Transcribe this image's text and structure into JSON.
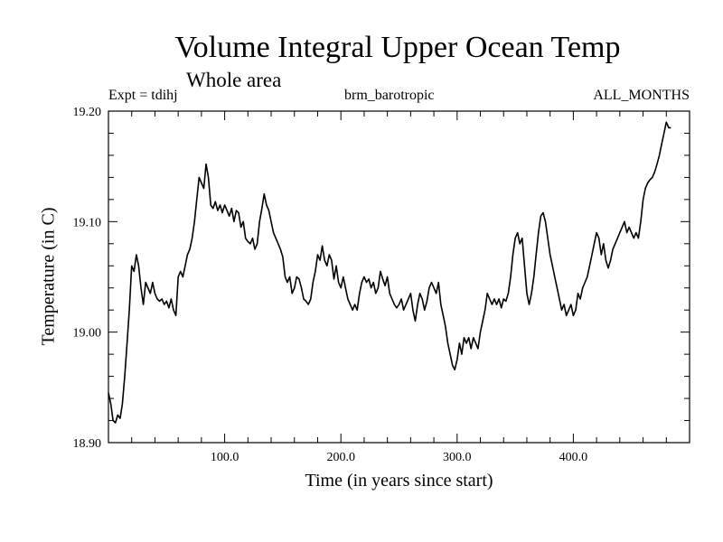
{
  "chart_data": {
    "type": "line",
    "title": "Volume Integral Upper Ocean Temp",
    "subtitle": "Whole area",
    "expt_label": "Expt = tdihj",
    "center_label": "brm_barotropic",
    "right_label": "ALL_MONTHS",
    "xlabel": "Time (in years since start)",
    "ylabel": "Temperature (in C)",
    "xlim": [
      0,
      500
    ],
    "ylim": [
      18.9,
      19.2
    ],
    "x_ticks": [
      {
        "value": 100,
        "label": "100.0"
      },
      {
        "value": 200,
        "label": "200.0"
      },
      {
        "value": 300,
        "label": "300.0"
      },
      {
        "value": 400,
        "label": "400.0"
      }
    ],
    "y_ticks": [
      {
        "value": 18.9,
        "label": "18.90"
      },
      {
        "value": 19.0,
        "label": "19.00"
      },
      {
        "value": 19.1,
        "label": "19.10"
      },
      {
        "value": 19.2,
        "label": "19.20"
      }
    ],
    "series": [
      {
        "name": "Temperature",
        "color": "#000000",
        "points": [
          [
            0,
            18.945
          ],
          [
            2,
            18.935
          ],
          [
            4,
            18.92
          ],
          [
            6,
            18.918
          ],
          [
            8,
            18.925
          ],
          [
            10,
            18.922
          ],
          [
            12,
            18.935
          ],
          [
            14,
            18.96
          ],
          [
            16,
            18.99
          ],
          [
            18,
            19.02
          ],
          [
            20,
            19.06
          ],
          [
            22,
            19.055
          ],
          [
            24,
            19.07
          ],
          [
            26,
            19.06
          ],
          [
            28,
            19.04
          ],
          [
            30,
            19.025
          ],
          [
            32,
            19.045
          ],
          [
            34,
            19.04
          ],
          [
            36,
            19.035
          ],
          [
            38,
            19.045
          ],
          [
            40,
            19.035
          ],
          [
            42,
            19.03
          ],
          [
            44,
            19.028
          ],
          [
            46,
            19.03
          ],
          [
            48,
            19.025
          ],
          [
            50,
            19.028
          ],
          [
            52,
            19.022
          ],
          [
            54,
            19.03
          ],
          [
            56,
            19.02
          ],
          [
            58,
            19.015
          ],
          [
            60,
            19.05
          ],
          [
            62,
            19.055
          ],
          [
            64,
            19.05
          ],
          [
            66,
            19.06
          ],
          [
            68,
            19.07
          ],
          [
            70,
            19.075
          ],
          [
            72,
            19.085
          ],
          [
            74,
            19.1
          ],
          [
            76,
            19.12
          ],
          [
            78,
            19.14
          ],
          [
            80,
            19.135
          ],
          [
            82,
            19.13
          ],
          [
            84,
            19.152
          ],
          [
            86,
            19.14
          ],
          [
            88,
            19.115
          ],
          [
            90,
            19.112
          ],
          [
            92,
            19.118
          ],
          [
            94,
            19.11
          ],
          [
            96,
            19.115
          ],
          [
            98,
            19.108
          ],
          [
            100,
            19.115
          ],
          [
            102,
            19.11
          ],
          [
            104,
            19.105
          ],
          [
            106,
            19.112
          ],
          [
            108,
            19.1
          ],
          [
            110,
            19.11
          ],
          [
            112,
            19.108
          ],
          [
            114,
            19.095
          ],
          [
            116,
            19.1
          ],
          [
            118,
            19.085
          ],
          [
            120,
            19.082
          ],
          [
            122,
            19.08
          ],
          [
            124,
            19.085
          ],
          [
            126,
            19.075
          ],
          [
            128,
            19.08
          ],
          [
            130,
            19.1
          ],
          [
            132,
            19.112
          ],
          [
            134,
            19.125
          ],
          [
            136,
            19.115
          ],
          [
            138,
            19.11
          ],
          [
            140,
            19.1
          ],
          [
            142,
            19.09
          ],
          [
            144,
            19.085
          ],
          [
            146,
            19.08
          ],
          [
            148,
            19.075
          ],
          [
            150,
            19.068
          ],
          [
            152,
            19.05
          ],
          [
            154,
            19.045
          ],
          [
            156,
            19.05
          ],
          [
            158,
            19.035
          ],
          [
            160,
            19.04
          ],
          [
            162,
            19.05
          ],
          [
            164,
            19.048
          ],
          [
            166,
            19.04
          ],
          [
            168,
            19.03
          ],
          [
            170,
            19.028
          ],
          [
            172,
            19.025
          ],
          [
            174,
            19.03
          ],
          [
            176,
            19.045
          ],
          [
            178,
            19.055
          ],
          [
            180,
            19.07
          ],
          [
            182,
            19.065
          ],
          [
            184,
            19.078
          ],
          [
            186,
            19.065
          ],
          [
            188,
            19.06
          ],
          [
            190,
            19.07
          ],
          [
            192,
            19.065
          ],
          [
            194,
            19.048
          ],
          [
            196,
            19.06
          ],
          [
            198,
            19.045
          ],
          [
            200,
            19.04
          ],
          [
            202,
            19.05
          ],
          [
            204,
            19.04
          ],
          [
            206,
            19.03
          ],
          [
            208,
            19.025
          ],
          [
            210,
            19.02
          ],
          [
            212,
            19.025
          ],
          [
            214,
            19.02
          ],
          [
            216,
            19.035
          ],
          [
            218,
            19.045
          ],
          [
            220,
            19.05
          ],
          [
            222,
            19.045
          ],
          [
            224,
            19.048
          ],
          [
            226,
            19.04
          ],
          [
            228,
            19.045
          ],
          [
            230,
            19.035
          ],
          [
            232,
            19.04
          ],
          [
            234,
            19.055
          ],
          [
            236,
            19.048
          ],
          [
            238,
            19.042
          ],
          [
            240,
            19.05
          ],
          [
            242,
            19.035
          ],
          [
            244,
            19.03
          ],
          [
            246,
            19.025
          ],
          [
            248,
            19.022
          ],
          [
            250,
            19.025
          ],
          [
            252,
            19.03
          ],
          [
            254,
            19.02
          ],
          [
            256,
            19.025
          ],
          [
            258,
            19.03
          ],
          [
            260,
            19.035
          ],
          [
            262,
            19.02
          ],
          [
            264,
            19.01
          ],
          [
            266,
            19.025
          ],
          [
            268,
            19.035
          ],
          [
            270,
            19.03
          ],
          [
            272,
            19.02
          ],
          [
            274,
            19.028
          ],
          [
            276,
            19.04
          ],
          [
            278,
            19.045
          ],
          [
            280,
            19.04
          ],
          [
            282,
            19.035
          ],
          [
            284,
            19.045
          ],
          [
            286,
            19.025
          ],
          [
            288,
            19.015
          ],
          [
            290,
            19.005
          ],
          [
            292,
            18.99
          ],
          [
            294,
            18.98
          ],
          [
            296,
            18.97
          ],
          [
            298,
            18.966
          ],
          [
            300,
            18.975
          ],
          [
            302,
            18.99
          ],
          [
            304,
            18.98
          ],
          [
            306,
            18.995
          ],
          [
            308,
            18.99
          ],
          [
            310,
            18.995
          ],
          [
            312,
            18.985
          ],
          [
            314,
            18.995
          ],
          [
            316,
            18.99
          ],
          [
            318,
            18.985
          ],
          [
            320,
            19.0
          ],
          [
            322,
            19.01
          ],
          [
            324,
            19.02
          ],
          [
            326,
            19.035
          ],
          [
            328,
            19.03
          ],
          [
            330,
            19.025
          ],
          [
            332,
            19.03
          ],
          [
            334,
            19.025
          ],
          [
            336,
            19.03
          ],
          [
            338,
            19.022
          ],
          [
            340,
            19.03
          ],
          [
            342,
            19.028
          ],
          [
            344,
            19.035
          ],
          [
            346,
            19.05
          ],
          [
            348,
            19.07
          ],
          [
            350,
            19.085
          ],
          [
            352,
            19.09
          ],
          [
            354,
            19.08
          ],
          [
            356,
            19.085
          ],
          [
            358,
            19.06
          ],
          [
            360,
            19.035
          ],
          [
            362,
            19.025
          ],
          [
            364,
            19.035
          ],
          [
            366,
            19.05
          ],
          [
            368,
            19.07
          ],
          [
            370,
            19.09
          ],
          [
            372,
            19.105
          ],
          [
            374,
            19.108
          ],
          [
            376,
            19.1
          ],
          [
            378,
            19.085
          ],
          [
            380,
            19.07
          ],
          [
            382,
            19.06
          ],
          [
            384,
            19.05
          ],
          [
            386,
            19.04
          ],
          [
            388,
            19.03
          ],
          [
            390,
            19.02
          ],
          [
            392,
            19.025
          ],
          [
            394,
            19.015
          ],
          [
            396,
            19.02
          ],
          [
            398,
            19.025
          ],
          [
            400,
            19.015
          ],
          [
            402,
            19.02
          ],
          [
            404,
            19.035
          ],
          [
            406,
            19.03
          ],
          [
            408,
            19.04
          ],
          [
            410,
            19.045
          ],
          [
            412,
            19.05
          ],
          [
            414,
            19.06
          ],
          [
            416,
            19.07
          ],
          [
            418,
            19.08
          ],
          [
            420,
            19.09
          ],
          [
            422,
            19.085
          ],
          [
            424,
            19.07
          ],
          [
            426,
            19.08
          ],
          [
            428,
            19.065
          ],
          [
            430,
            19.058
          ],
          [
            432,
            19.065
          ],
          [
            434,
            19.075
          ],
          [
            436,
            19.08
          ],
          [
            438,
            19.085
          ],
          [
            440,
            19.09
          ],
          [
            442,
            19.095
          ],
          [
            444,
            19.1
          ],
          [
            446,
            19.09
          ],
          [
            448,
            19.095
          ],
          [
            450,
            19.09
          ],
          [
            452,
            19.085
          ],
          [
            454,
            19.09
          ],
          [
            456,
            19.085
          ],
          [
            458,
            19.1
          ],
          [
            460,
            19.12
          ],
          [
            462,
            19.13
          ],
          [
            464,
            19.135
          ],
          [
            466,
            19.138
          ],
          [
            468,
            19.14
          ],
          [
            470,
            19.145
          ],
          [
            472,
            19.152
          ],
          [
            474,
            19.16
          ],
          [
            476,
            19.17
          ],
          [
            478,
            19.18
          ],
          [
            480,
            19.19
          ],
          [
            482,
            19.185
          ],
          [
            484,
            19.185
          ]
        ]
      }
    ]
  }
}
